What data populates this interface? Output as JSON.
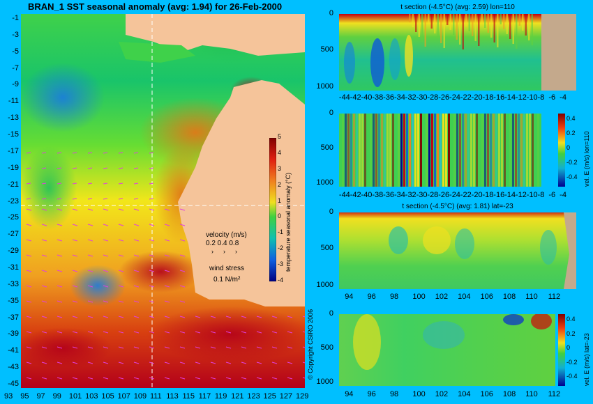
{
  "main_title": "BRAN_1 SST seasonal anomaly (avg: 1.94) for 26-Feb-2000",
  "copyright": "© Copyright CSIRO 2006",
  "colors": {
    "background": "#00bfff",
    "land": "#f5c49a",
    "shelf": "#bfa48a",
    "warm": "#b3001a",
    "cool": "#0a5ad6"
  },
  "chart_data": [
    {
      "type": "heatmap",
      "name": "sst-anomaly-map",
      "title": "BRAN_1 SST seasonal anomaly (avg: 1.94) for 26-Feb-2000",
      "x_ticks": [
        "93",
        "95",
        "97",
        "99",
        "101",
        "103",
        "105",
        "107",
        "109",
        "111",
        "113",
        "115",
        "117",
        "119",
        "121",
        "123",
        "125",
        "127",
        "129"
      ],
      "y_ticks": [
        "-1",
        "-3",
        "-5",
        "-7",
        "-9",
        "-11",
        "-13",
        "-15",
        "-17",
        "-19",
        "-21",
        "-23",
        "-25",
        "-27",
        "-29",
        "-31",
        "-33",
        "-35",
        "-37",
        "-39",
        "-41",
        "-43",
        "-45"
      ],
      "xlim": [
        93,
        130
      ],
      "ylim": [
        -45,
        0
      ],
      "crosshair": {
        "lon": 110,
        "lat": -23
      },
      "colorbar": {
        "label": "temperature seasonal anomaly (°C)",
        "ticks": [
          "5",
          "4",
          "3",
          "2",
          "1",
          "0",
          "-1",
          "-2",
          "-3",
          "-4"
        ],
        "range": [
          -4,
          5
        ]
      },
      "legend": {
        "velocity_label": "velocity (m/s)",
        "velocity_values": "0.2 0.4 0.8",
        "wind_label": "wind stress",
        "wind_value": "0.1 N/m²"
      }
    },
    {
      "type": "heatmap",
      "name": "t-section-lon110",
      "title": "t section (-4.5°C) (avg: 2.59) lon=110",
      "x_ticks": [
        "-44",
        "-42",
        "-40",
        "-38",
        "-36",
        "-34",
        "-32",
        "-30",
        "-28",
        "-26",
        "-24",
        "-22",
        "-20",
        "-18",
        "-16",
        "-14",
        "-12",
        "-10",
        "-8",
        "-6",
        "-4"
      ],
      "y_ticks": [
        "0",
        "500",
        "1000"
      ],
      "xlim": [
        -45,
        -2
      ],
      "ylim": [
        1050,
        0
      ]
    },
    {
      "type": "heatmap",
      "name": "vel-e-section-lon110",
      "title": "",
      "x_ticks": [
        "-44",
        "-42",
        "-40",
        "-38",
        "-36",
        "-34",
        "-32",
        "-30",
        "-28",
        "-26",
        "-24",
        "-22",
        "-20",
        "-18",
        "-16",
        "-14",
        "-12",
        "-10",
        "-8",
        "-6",
        "-4"
      ],
      "y_ticks": [
        "0",
        "500",
        "1000"
      ],
      "colorbar": {
        "label": "vel. E (m/s) lon=110",
        "ticks": [
          "0.4",
          "0.2",
          "0",
          "-0.2",
          "-0.4"
        ],
        "range": [
          -0.5,
          0.5
        ]
      }
    },
    {
      "type": "heatmap",
      "name": "t-section-lat-23",
      "title": "t section (-4.5°C) (avg: 1.81) lat=-23",
      "x_ticks": [
        "94",
        "96",
        "98",
        "100",
        "102",
        "104",
        "106",
        "108",
        "110",
        "112"
      ],
      "y_ticks": [
        "0",
        "500",
        "1000"
      ],
      "xlim": [
        93,
        114
      ],
      "ylim": [
        1050,
        0
      ]
    },
    {
      "type": "heatmap",
      "name": "vel-e-section-lat-23",
      "title": "",
      "x_ticks": [
        "94",
        "96",
        "98",
        "100",
        "102",
        "104",
        "106",
        "108",
        "110",
        "112"
      ],
      "y_ticks": [
        "0",
        "500",
        "1000"
      ],
      "colorbar": {
        "label": "vel. E (m/s) lat=-23",
        "ticks": [
          "0.4",
          "0.2",
          "0",
          "-0.2",
          "-0.4"
        ],
        "range": [
          -0.5,
          0.5
        ]
      }
    }
  ]
}
